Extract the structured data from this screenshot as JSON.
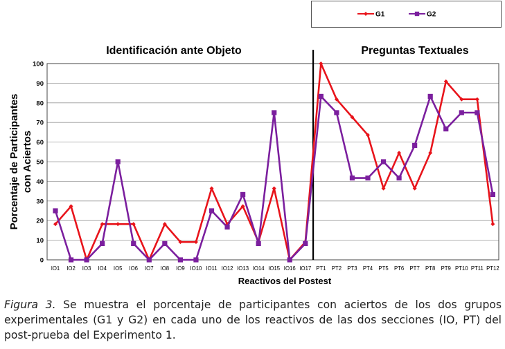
{
  "chart_data": {
    "type": "line",
    "xlabel": "Reactivos del Postest",
    "ylabel_line1": "Porcentaje de Participantes",
    "ylabel_line2": "con Aciertos",
    "ylim": [
      0,
      100
    ],
    "yticks": [
      "0",
      "10",
      "20",
      "30",
      "40",
      "50",
      "60",
      "70",
      "80",
      "90",
      "100"
    ],
    "categories": [
      "IO1",
      "IO2",
      "IO3",
      "IO4",
      "IO5",
      "IO6",
      "IO7",
      "IO8",
      "IO9",
      "IO10",
      "IO11",
      "IO12",
      "IO13",
      "IO14",
      "IO15",
      "IO16",
      "IO17",
      "PT1",
      "PT2",
      "PT3",
      "PT4",
      "PT5",
      "PT6",
      "PT7",
      "PT8",
      "PT9",
      "PT10",
      "PT11",
      "PT12"
    ],
    "sections": [
      {
        "title": "Identificación ante Objeto",
        "start": 0,
        "end": 16
      },
      {
        "title": "Preguntas Textuales",
        "start": 17,
        "end": 28
      }
    ],
    "series": [
      {
        "name": "G1",
        "color": "#e8141b",
        "marker": "diamond",
        "values": [
          18.2,
          27.3,
          0,
          18.2,
          18.2,
          18.2,
          0,
          18.2,
          9.1,
          9.1,
          36.4,
          18.2,
          27.3,
          9.1,
          36.4,
          0,
          9.1,
          100,
          81.8,
          72.7,
          63.6,
          36.4,
          54.5,
          36.4,
          54.5,
          90.9,
          81.8,
          81.8,
          18.2
        ]
      },
      {
        "name": "G2",
        "color": "#7b1f9e",
        "marker": "square",
        "values": [
          25,
          0,
          0,
          8.3,
          50,
          8.3,
          0,
          8.3,
          0,
          0,
          25,
          16.7,
          33.3,
          8.3,
          75,
          0,
          8.3,
          83.3,
          75,
          41.7,
          41.7,
          50,
          41.7,
          58.3,
          83.3,
          66.7,
          75,
          75,
          33.3
        ]
      }
    ],
    "legend_position": "top-right"
  },
  "caption": {
    "lead": "Figura 3.",
    "text": " Se muestra el porcentaje de participantes con aciertos de los dos grupos experimentales (G1 y G2) en cada uno de los reactivos de las dos secciones (IO, PT) del post-prueba del Experimento 1."
  }
}
